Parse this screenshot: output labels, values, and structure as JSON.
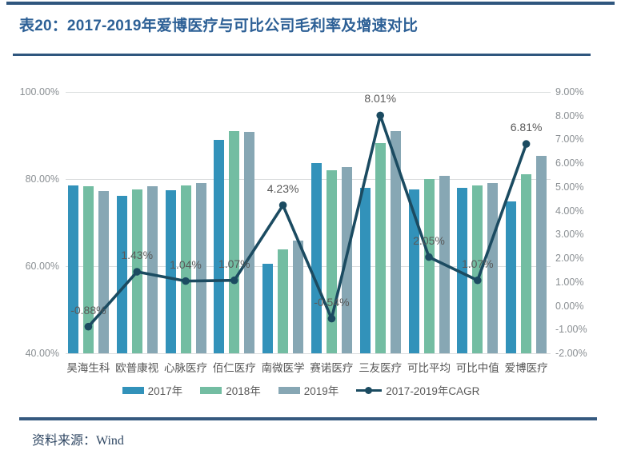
{
  "page": {
    "title": "表20：2017-2019年爱博医疗与可比公司毛利率及增速对比",
    "source_label": "资料来源：Wind"
  },
  "colors": {
    "title_text": "#2D6096",
    "rule": "#2F567E",
    "bar_2017": "#3292BA",
    "bar_2018": "#73BDA2",
    "bar_2019": "#87A7B4",
    "cagr_line": "#1B4B61",
    "grid": "#DADDDE",
    "axis_text": "#8A8F93",
    "data_label_text": "#595959"
  },
  "chart_data": {
    "type": "bar",
    "subtype": "grouped bars with line overlay (dual axis)",
    "categories": [
      "昊海生科",
      "欧普康视",
      "心脉医疗",
      "佰仁医疗",
      "南微医学",
      "赛诺医疗",
      "三友医疗",
      "可比平均",
      "可比中值",
      "爱博医疗"
    ],
    "series": [
      {
        "name": "2017年",
        "type": "bar",
        "axis": "left",
        "values": [
          78.6,
          76.1,
          77.4,
          89.0,
          60.6,
          83.7,
          78.0,
          77.6,
          78.0,
          74.9
        ]
      },
      {
        "name": "2018年",
        "type": "bar",
        "axis": "left",
        "values": [
          78.4,
          77.7,
          78.5,
          91.0,
          63.8,
          82.1,
          88.3,
          80.0,
          78.5,
          81.1
        ]
      },
      {
        "name": "2019年",
        "type": "bar",
        "axis": "left",
        "values": [
          77.2,
          78.3,
          79.0,
          90.9,
          65.8,
          82.8,
          91.0,
          80.7,
          79.1,
          85.4
        ]
      },
      {
        "name": "2017-2019年CAGR",
        "type": "line",
        "axis": "right",
        "values": [
          -0.88,
          1.43,
          1.04,
          1.07,
          4.23,
          -0.54,
          8.01,
          2.05,
          1.07,
          6.81
        ],
        "point_labels": [
          "-0.88%",
          "1.43%",
          "1.04%",
          "1.07%",
          "4.23%",
          "-0.54%",
          "8.01%",
          "2.05%",
          "1.07%",
          "6.81%"
        ]
      }
    ],
    "left_axis": {
      "min": 40,
      "max": 100,
      "tick_labels": [
        "100.00%",
        "80.00%",
        "60.00%",
        "40.00%"
      ]
    },
    "right_axis": {
      "min": -2,
      "max": 9,
      "tick_labels": [
        "9.00%",
        "8.00%",
        "7.00%",
        "6.00%",
        "5.00%",
        "4.00%",
        "3.00%",
        "2.00%",
        "1.00%",
        "0.00%",
        "-1.00%",
        "-2.00%"
      ]
    },
    "grid": "horizontal gridlines at left-axis ticks",
    "legend_position": "bottom center",
    "legend": [
      "2017年",
      "2018年",
      "2019年",
      "2017-2019年CAGR"
    ]
  }
}
